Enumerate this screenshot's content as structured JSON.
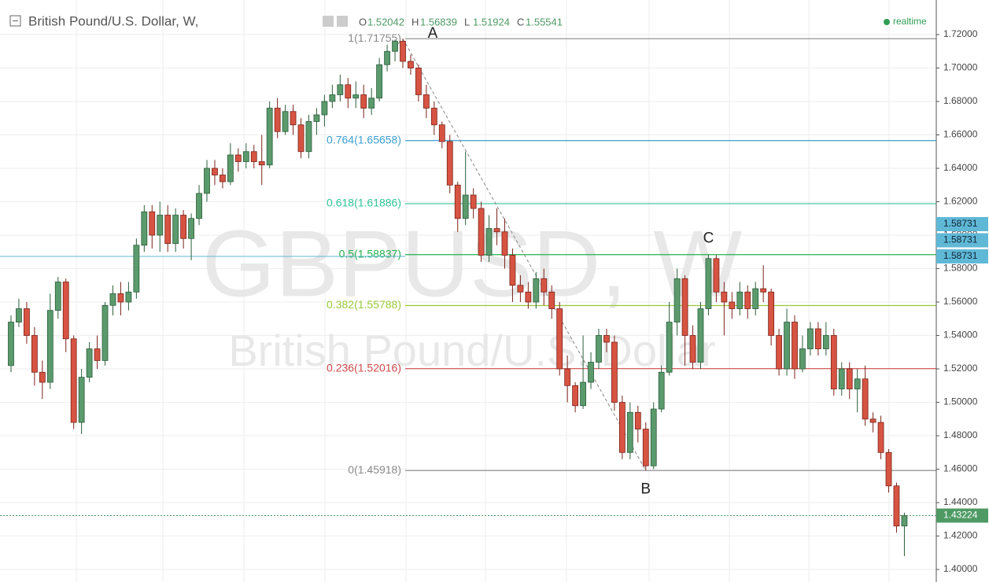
{
  "chart_data": {
    "type": "candlestick",
    "title": "British Pound/U.S. Dollar, W,",
    "ohlc_header": [
      {
        "key": "O",
        "value": "1.52042"
      },
      {
        "key": "H",
        "value": "1.56839"
      },
      {
        "key": "L",
        "value": "1.51924"
      },
      {
        "key": "C",
        "value": "1.55541"
      }
    ],
    "status": "realtime",
    "watermark": "GBPUSD, W",
    "watermark_subtitle": "British Pound/U.S. Dollar",
    "ylim": [
      1.3925,
      1.7407
    ],
    "yticks": [
      {
        "value": 1.4,
        "label": "1.40000"
      },
      {
        "value": 1.42,
        "label": "1.42000"
      },
      {
        "value": 1.44,
        "label": "1.44000"
      },
      {
        "value": 1.46,
        "label": "1.46000"
      },
      {
        "value": 1.48,
        "label": "1.48000"
      },
      {
        "value": 1.5,
        "label": "1.50000"
      },
      {
        "value": 1.52,
        "label": "1.52000"
      },
      {
        "value": 1.54,
        "label": "1.54000"
      },
      {
        "value": 1.56,
        "label": "1.56000"
      },
      {
        "value": 1.58,
        "label": "1.58000"
      },
      {
        "value": 1.6,
        "label": "1.60000"
      },
      {
        "value": 1.62,
        "label": "1.62000"
      },
      {
        "value": 1.64,
        "label": "1.64000"
      },
      {
        "value": 1.66,
        "label": "1.66000"
      },
      {
        "value": 1.68,
        "label": "1.68000"
      },
      {
        "value": 1.7,
        "label": "1.70000"
      },
      {
        "value": 1.72,
        "label": "1.72000"
      }
    ],
    "grid": true,
    "up_color": "#5b9a6c",
    "down_color": "#d75442",
    "fib_levels": [
      {
        "label": "1(1.71755)",
        "value": 1.71755,
        "color": "#8a8a8a"
      },
      {
        "label": "0.764(1.65658)",
        "value": 1.65658,
        "color": "#3a9fd0"
      },
      {
        "label": "0.618(1.61886)",
        "value": 1.61886,
        "color": "#2fc49a"
      },
      {
        "label": "0.5(1.58837)",
        "value": 1.58837,
        "color": "#22b14c"
      },
      {
        "label": "0.382(1.55788)",
        "value": 1.55788,
        "color": "#9ac93a"
      },
      {
        "label": "0.236(1.52016)",
        "value": 1.52016,
        "color": "#d04a4a"
      },
      {
        "label": "0(1.45918)",
        "value": 1.45918,
        "color": "#8a8a8a"
      }
    ],
    "points": [
      {
        "label": "A",
        "index": 50,
        "value": 1.71755
      },
      {
        "label": "B",
        "index": 81,
        "value": 1.45918
      },
      {
        "label": "C",
        "index": 89,
        "value": 1.58837
      }
    ],
    "price_tags": [
      {
        "label": "1.58731",
        "value": 1.58731,
        "color": "#5fb8d6"
      },
      {
        "label": "1.58731",
        "value": 1.58731,
        "color": "#5fb8d6"
      },
      {
        "label": "1.58731",
        "value": 1.58731,
        "color": "#5fb8d6"
      },
      {
        "label": "1.43224",
        "value": 1.43224,
        "color": "#4e9a64"
      }
    ],
    "ohlc": [
      [
        1.522,
        1.552,
        1.518,
        1.548
      ],
      [
        1.548,
        1.562,
        1.545,
        1.556
      ],
      [
        1.556,
        1.56,
        1.535,
        1.54
      ],
      [
        1.54,
        1.545,
        1.51,
        1.518
      ],
      [
        1.518,
        1.525,
        1.502,
        1.512
      ],
      [
        1.512,
        1.565,
        1.508,
        1.555
      ],
      [
        1.555,
        1.575,
        1.55,
        1.572
      ],
      [
        1.572,
        1.574,
        1.53,
        1.538
      ],
      [
        1.538,
        1.54,
        1.484,
        1.488
      ],
      [
        1.488,
        1.52,
        1.481,
        1.515
      ],
      [
        1.515,
        1.536,
        1.512,
        1.532
      ],
      [
        1.532,
        1.54,
        1.52,
        1.525
      ],
      [
        1.525,
        1.56,
        1.522,
        1.558
      ],
      [
        1.558,
        1.57,
        1.552,
        1.565
      ],
      [
        1.565,
        1.572,
        1.552,
        1.56
      ],
      [
        1.56,
        1.572,
        1.555,
        1.566
      ],
      [
        1.566,
        1.598,
        1.562,
        1.594
      ],
      [
        1.594,
        1.618,
        1.59,
        1.614
      ],
      [
        1.614,
        1.618,
        1.592,
        1.6
      ],
      [
        1.6,
        1.62,
        1.59,
        1.612
      ],
      [
        1.612,
        1.618,
        1.59,
        1.595
      ],
      [
        1.595,
        1.616,
        1.59,
        1.612
      ],
      [
        1.612,
        1.615,
        1.592,
        1.598
      ],
      [
        1.598,
        1.613,
        1.585,
        1.61
      ],
      [
        1.61,
        1.63,
        1.606,
        1.625
      ],
      [
        1.625,
        1.645,
        1.62,
        1.64
      ],
      [
        1.64,
        1.645,
        1.63,
        1.636
      ],
      [
        1.636,
        1.64,
        1.628,
        1.632
      ],
      [
        1.632,
        1.655,
        1.63,
        1.648
      ],
      [
        1.648,
        1.652,
        1.638,
        1.644
      ],
      [
        1.644,
        1.655,
        1.64,
        1.65
      ],
      [
        1.65,
        1.654,
        1.64,
        1.644
      ],
      [
        1.644,
        1.66,
        1.63,
        1.642
      ],
      [
        1.642,
        1.68,
        1.64,
        1.676
      ],
      [
        1.676,
        1.682,
        1.658,
        1.662
      ],
      [
        1.662,
        1.678,
        1.66,
        1.674
      ],
      [
        1.674,
        1.678,
        1.66,
        1.666
      ],
      [
        1.666,
        1.67,
        1.646,
        1.65
      ],
      [
        1.65,
        1.672,
        1.646,
        1.668
      ],
      [
        1.668,
        1.676,
        1.66,
        1.672
      ],
      [
        1.672,
        1.684,
        1.665,
        1.68
      ],
      [
        1.68,
        1.69,
        1.676,
        1.684
      ],
      [
        1.684,
        1.696,
        1.68,
        1.69
      ],
      [
        1.69,
        1.694,
        1.676,
        1.682
      ],
      [
        1.682,
        1.692,
        1.676,
        1.684
      ],
      [
        1.684,
        1.69,
        1.67,
        1.676
      ],
      [
        1.676,
        1.688,
        1.672,
        1.682
      ],
      [
        1.682,
        1.706,
        1.68,
        1.702
      ],
      [
        1.702,
        1.714,
        1.698,
        1.71
      ],
      [
        1.71,
        1.717,
        1.704,
        1.716
      ],
      [
        1.716,
        1.71755,
        1.7,
        1.704
      ],
      [
        1.704,
        1.708,
        1.696,
        1.7
      ],
      [
        1.7,
        1.702,
        1.68,
        1.684
      ],
      [
        1.684,
        1.69,
        1.67,
        1.676
      ],
      [
        1.676,
        1.68,
        1.66,
        1.666
      ],
      [
        1.666,
        1.668,
        1.652,
        1.656
      ],
      [
        1.656,
        1.66,
        1.625,
        1.63
      ],
      [
        1.63,
        1.632,
        1.602,
        1.61
      ],
      [
        1.61,
        1.65,
        1.606,
        1.624
      ],
      [
        1.624,
        1.628,
        1.61,
        1.616
      ],
      [
        1.616,
        1.62,
        1.584,
        1.588
      ],
      [
        1.588,
        1.612,
        1.584,
        1.604
      ],
      [
        1.604,
        1.616,
        1.594,
        1.602
      ],
      [
        1.602,
        1.61,
        1.58,
        1.588
      ],
      [
        1.588,
        1.592,
        1.56,
        1.57
      ],
      [
        1.57,
        1.576,
        1.56,
        1.566
      ],
      [
        1.566,
        1.572,
        1.556,
        1.56
      ],
      [
        1.56,
        1.578,
        1.556,
        1.574
      ],
      [
        1.574,
        1.58,
        1.558,
        1.566
      ],
      [
        1.566,
        1.57,
        1.55,
        1.556
      ],
      [
        1.556,
        1.56,
        1.516,
        1.52
      ],
      [
        1.52,
        1.528,
        1.5,
        1.51
      ],
      [
        1.51,
        1.512,
        1.494,
        1.498
      ],
      [
        1.498,
        1.54,
        1.496,
        1.512
      ],
      [
        1.512,
        1.53,
        1.508,
        1.524
      ],
      [
        1.524,
        1.544,
        1.52,
        1.54
      ],
      [
        1.54,
        1.544,
        1.53,
        1.536
      ],
      [
        1.536,
        1.54,
        1.495,
        1.5
      ],
      [
        1.5,
        1.504,
        1.466,
        1.47
      ],
      [
        1.47,
        1.5,
        1.466,
        1.494
      ],
      [
        1.494,
        1.498,
        1.476,
        1.484
      ],
      [
        1.484,
        1.488,
        1.45918,
        1.462
      ],
      [
        1.462,
        1.5,
        1.46,
        1.496
      ],
      [
        1.496,
        1.522,
        1.494,
        1.518
      ],
      [
        1.518,
        1.56,
        1.516,
        1.548
      ],
      [
        1.548,
        1.58,
        1.54,
        1.574
      ],
      [
        1.574,
        1.576,
        1.522,
        1.54
      ],
      [
        1.54,
        1.546,
        1.52,
        1.524
      ],
      [
        1.524,
        1.56,
        1.52,
        1.556
      ],
      [
        1.556,
        1.58837,
        1.552,
        1.586
      ],
      [
        1.586,
        1.588,
        1.56,
        1.566
      ],
      [
        1.566,
        1.572,
        1.54,
        1.56
      ],
      [
        1.56,
        1.566,
        1.55,
        1.556
      ],
      [
        1.556,
        1.572,
        1.552,
        1.566
      ],
      [
        1.566,
        1.57,
        1.55,
        1.556
      ],
      [
        1.556,
        1.572,
        1.552,
        1.568
      ],
      [
        1.568,
        1.582,
        1.56,
        1.566
      ],
      [
        1.566,
        1.568,
        1.534,
        1.54
      ],
      [
        1.54,
        1.544,
        1.516,
        1.52
      ],
      [
        1.52,
        1.556,
        1.516,
        1.548
      ],
      [
        1.548,
        1.552,
        1.514,
        1.52
      ],
      [
        1.52,
        1.54,
        1.518,
        1.532
      ],
      [
        1.532,
        1.548,
        1.528,
        1.544
      ],
      [
        1.544,
        1.548,
        1.528,
        1.532
      ],
      [
        1.532,
        1.548,
        1.528,
        1.54
      ],
      [
        1.54,
        1.544,
        1.504,
        1.508
      ],
      [
        1.508,
        1.524,
        1.504,
        1.52
      ],
      [
        1.52,
        1.524,
        1.502,
        1.508
      ],
      [
        1.508,
        1.52,
        1.494,
        1.514
      ],
      [
        1.514,
        1.522,
        1.486,
        1.49
      ],
      [
        1.49,
        1.494,
        1.482,
        1.488
      ],
      [
        1.488,
        1.492,
        1.466,
        1.47
      ],
      [
        1.47,
        1.472,
        1.446,
        1.45
      ],
      [
        1.45,
        1.452,
        1.422,
        1.426
      ],
      [
        1.426,
        1.434,
        1.408,
        1.43224
      ]
    ]
  }
}
